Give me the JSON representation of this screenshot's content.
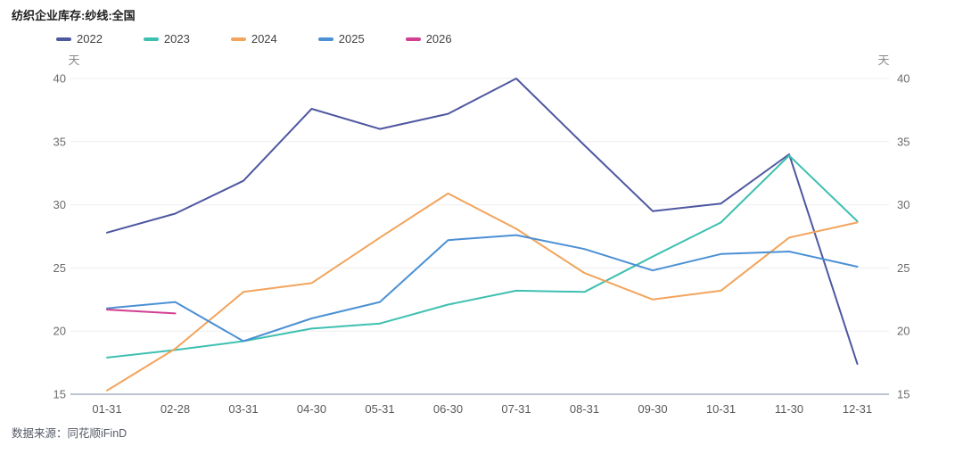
{
  "title": "纺织企业库存:纱线:全国",
  "source": "数据来源：同花顺iFinD",
  "chart_data": {
    "type": "line",
    "title": "纺织企业库存:纱线:全国",
    "unit_label": "天",
    "categories": [
      "01-31",
      "02-28",
      "03-31",
      "04-30",
      "05-31",
      "06-30",
      "07-31",
      "08-31",
      "09-30",
      "10-31",
      "11-30",
      "12-31"
    ],
    "y_ticks": [
      15,
      20,
      25,
      30,
      35,
      40
    ],
    "ylim": [
      15,
      40
    ],
    "grid": true,
    "dual_y_axis": true,
    "legend_position": "top-left",
    "series": [
      {
        "name": "2022",
        "color": "#4e57a0",
        "values": [
          27.8,
          29.3,
          31.9,
          37.6,
          36.0,
          37.2,
          40.0,
          34.7,
          29.5,
          30.1,
          34.0,
          17.4
        ]
      },
      {
        "name": "2023",
        "color": "#3ec0b0",
        "values": [
          17.9,
          18.5,
          19.2,
          20.2,
          20.6,
          22.1,
          23.2,
          23.1,
          25.9,
          28.6,
          33.9,
          28.7
        ]
      },
      {
        "name": "2024",
        "color": "#f2a45c",
        "values": [
          15.3,
          18.6,
          23.1,
          23.8,
          27.4,
          30.9,
          28.1,
          24.6,
          22.5,
          23.2,
          27.4,
          28.6
        ]
      },
      {
        "name": "2025",
        "color": "#4b90d4",
        "values": [
          21.8,
          22.3,
          19.2,
          21.0,
          22.3,
          27.2,
          27.6,
          26.5,
          24.8,
          26.1,
          26.3,
          25.1
        ]
      },
      {
        "name": "2026",
        "color": "#d23f90",
        "values": [
          21.7,
          21.4
        ]
      }
    ],
    "axis_colors": {
      "grid": "#ededf0",
      "baseline": "#a9afc2",
      "tick_text": "#6b6b6b",
      "x_text": "#595959",
      "unit_text": "#8a8a8a"
    }
  }
}
